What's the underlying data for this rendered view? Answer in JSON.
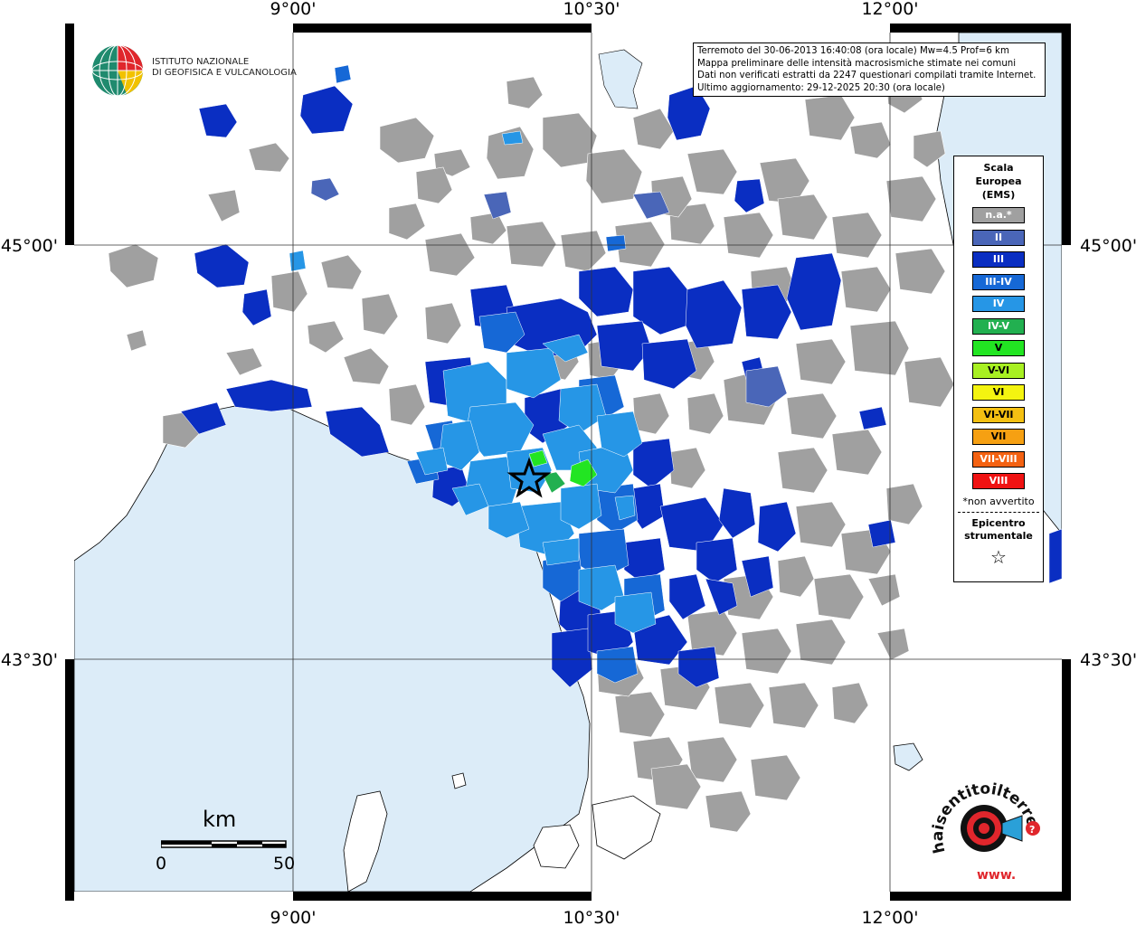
{
  "map": {
    "lon_labels": [
      "9°00'",
      "10°30'",
      "12°00'"
    ],
    "lat_labels": [
      "45°00'",
      "43°30'"
    ],
    "colors": {
      "sea": "#dcecf8",
      "land": "#ffffff",
      "na": "#a0a0a0",
      "II": "#4a66b8",
      "III": "#0a2ec2",
      "III-IV": "#1668d6",
      "IV": "#2696e6",
      "IV-V": "#22b050",
      "V": "#22e522"
    }
  },
  "info": {
    "line1": "Terremoto del 30-06-2013 16:40:08 (ora locale) Mw=4.5 Prof=6 km",
    "line2": "Mappa preliminare delle intensità macrosismiche stimate nei comuni",
    "line3": "Dati non verificati estratti da 2247 questionari compilati tramite Internet.",
    "line4": "Ultimo aggiornamento: 29-12-2025 20:30 (ora locale)"
  },
  "legend": {
    "title_l1": "Scala",
    "title_l2": "Europea",
    "title_l3": "(EMS)",
    "items": [
      {
        "label": "n.a.*",
        "color": "#a0a0a0"
      },
      {
        "label": "II",
        "color": "#4a66b8"
      },
      {
        "label": "III",
        "color": "#0a2ec2"
      },
      {
        "label": "III-IV",
        "color": "#1668d6"
      },
      {
        "label": "IV",
        "color": "#2696e6"
      },
      {
        "label": "IV-V",
        "color": "#22b050"
      },
      {
        "label": "V",
        "color": "#22e522"
      },
      {
        "label": "V-VI",
        "color": "#a8f022"
      },
      {
        "label": "VI",
        "color": "#f4f410"
      },
      {
        "label": "VI-VII",
        "color": "#f4c012"
      },
      {
        "label": "VII",
        "color": "#f6a012"
      },
      {
        "label": "VII-VIII",
        "color": "#f46212"
      },
      {
        "label": "VIII",
        "color": "#f01212"
      }
    ],
    "note": "*non avvertito",
    "epicenter_l1": "Epicentro",
    "epicenter_l2": "strumentale",
    "star": "☆"
  },
  "logo": {
    "line1": "ISTITUTO NAZIONALE",
    "line2": "DI GEOFISICA E VULCANOLOGIA"
  },
  "hst_logo": {
    "text": "haisentitoilterremoto.it",
    "www": "www."
  },
  "scale": {
    "unit": "km",
    "start": "0",
    "end": "50"
  }
}
